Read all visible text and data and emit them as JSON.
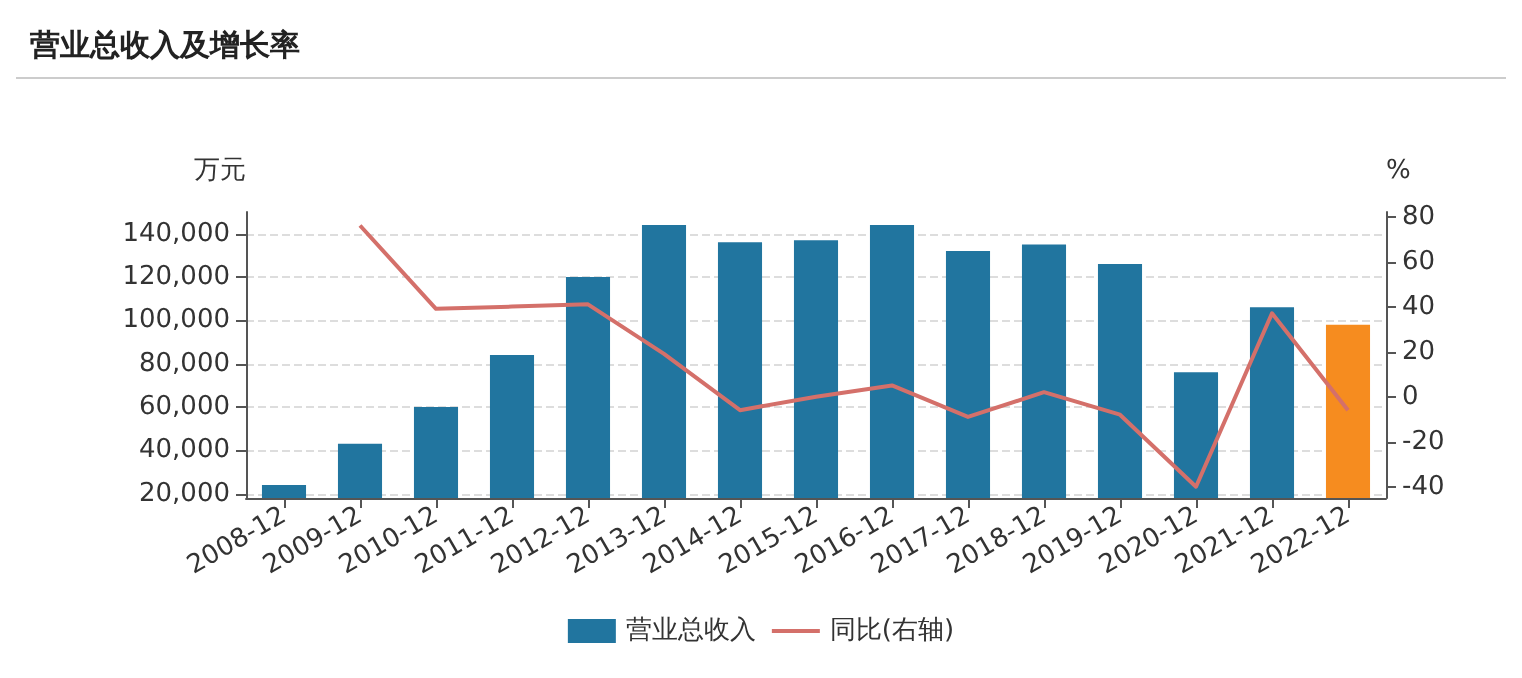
{
  "chart_data": {
    "type": "bar",
    "title": "营业总收入及增长率",
    "ylabel": "万元",
    "y2label": "%",
    "categories": [
      "2008-12",
      "2009-12",
      "2010-12",
      "2011-12",
      "2012-12",
      "2013-12",
      "2014-12",
      "2015-12",
      "2016-12",
      "2017-12",
      "2018-12",
      "2019-12",
      "2020-12",
      "2021-12",
      "2022-12"
    ],
    "series": [
      {
        "name": "营业总收入",
        "color": "#21759f",
        "colors": [
          "#21759f",
          "#21759f",
          "#21759f",
          "#21759f",
          "#21759f",
          "#21759f",
          "#21759f",
          "#21759f",
          "#21759f",
          "#21759f",
          "#21759f",
          "#21759f",
          "#21759f",
          "#21759f",
          "#f68c1f"
        ],
        "values": [
          24000,
          43000,
          60000,
          84000,
          120000,
          144000,
          136000,
          137000,
          144000,
          132000,
          135000,
          126000,
          76000,
          106000,
          98000
        ]
      },
      {
        "name": "同比(右轴)",
        "type": "line",
        "axis": "y2",
        "color": "#d4706a",
        "values": [
          null,
          76,
          39,
          40,
          41,
          19,
          -6,
          0,
          5,
          -9,
          2,
          -8,
          -40,
          37,
          -6
        ]
      }
    ],
    "ylim": [
      18000,
      150000
    ],
    "yticks": [
      {
        "value": 20000,
        "label": "20,000"
      },
      {
        "value": 40000,
        "label": "40,000"
      },
      {
        "value": 60000,
        "label": "60,000"
      },
      {
        "value": 80000,
        "label": "80,000"
      },
      {
        "value": 100000,
        "label": "100,000"
      },
      {
        "value": 120000,
        "label": "120,000"
      },
      {
        "value": 140000,
        "label": "140,000"
      }
    ],
    "y2lim": [
      -45,
      82
    ],
    "y2ticks": [
      -40,
      -20,
      0,
      20,
      40,
      60,
      80
    ],
    "grid": "y",
    "legend": "bottom",
    "marker": "none"
  }
}
